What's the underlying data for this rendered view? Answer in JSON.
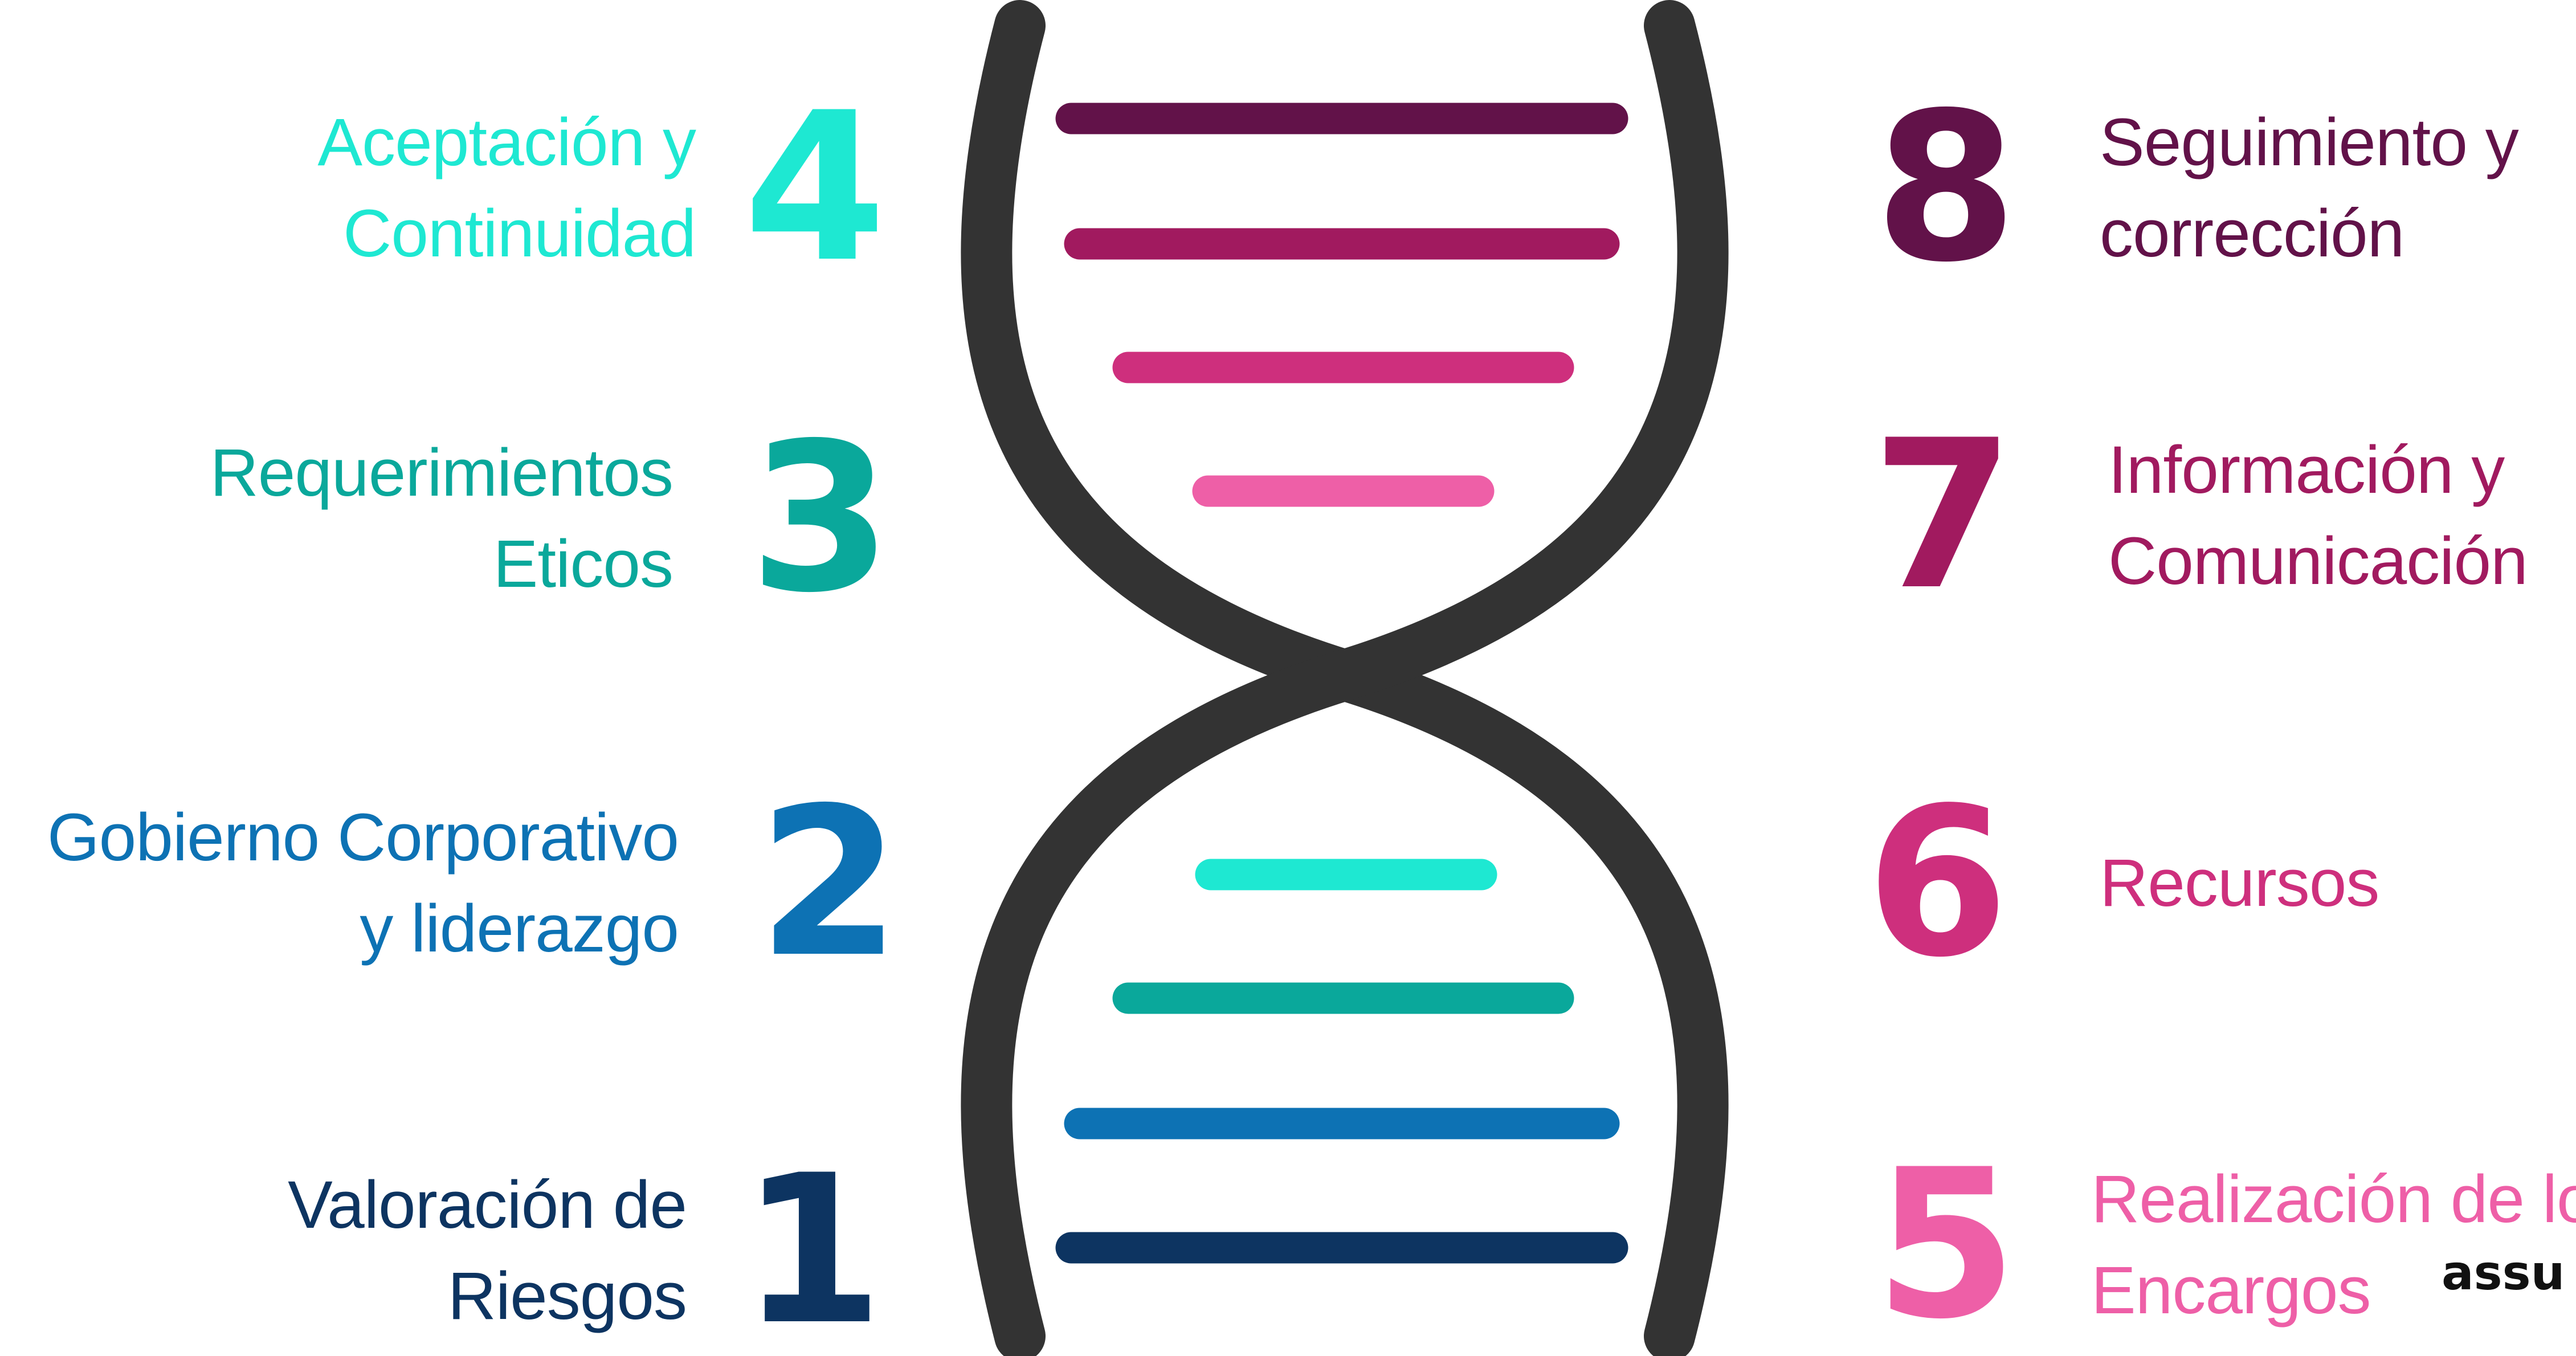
{
  "items": [
    {
      "number": "1",
      "label_lines": [
        "Valoración de",
        "Riesgos"
      ],
      "color": "#0d3461"
    },
    {
      "number": "2",
      "label_lines": [
        "Gobierno Corporativo",
        "y liderazgo"
      ],
      "color": "#0d72b4"
    },
    {
      "number": "3",
      "label_lines": [
        "Requerimientos",
        "Eticos"
      ],
      "color": "#0aa89b"
    },
    {
      "number": "4",
      "label_lines": [
        "Aceptación y",
        "Continuidad"
      ],
      "color": "#1ee8d2"
    },
    {
      "number": "5",
      "label_lines": [
        "Realización de lo",
        "Encargos"
      ],
      "color": "#ee5fa7"
    },
    {
      "number": "6",
      "label_lines": [
        "Recursos"
      ],
      "color": "#ce2f7d"
    },
    {
      "number": "7",
      "label_lines": [
        "Información y",
        "Comunicación"
      ],
      "color": "#a11a5f"
    },
    {
      "number": "8",
      "label_lines": [
        "Seguimiento y",
        "corrección"
      ],
      "color": "#621249"
    }
  ],
  "helix": {
    "strand_color": "#333333",
    "rung_colors_top": [
      "#621249",
      "#a11a5f",
      "#ce2f7d",
      "#ee5fa7"
    ],
    "rung_colors_bottom": [
      "#1ee8d2",
      "#0aa89b",
      "#0d72b4",
      "#0d3461"
    ]
  },
  "logo": {
    "text": "assu",
    "icon": "logo-icon"
  }
}
